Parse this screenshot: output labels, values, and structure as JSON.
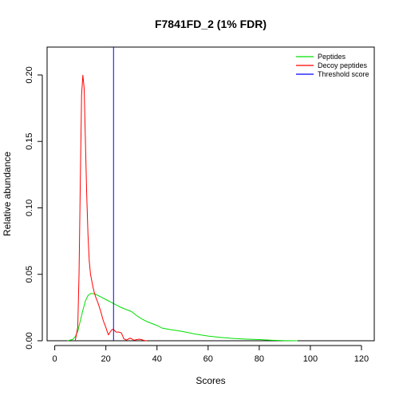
{
  "chart_data": {
    "type": "line",
    "title": "F7841FD_2 (1% FDR)",
    "xlabel": "Scores",
    "ylabel": "Relative abundance",
    "xlim": [
      -3,
      125
    ],
    "ylim": [
      0,
      0.221
    ],
    "x_ticks": [
      0,
      20,
      40,
      60,
      80,
      100,
      120
    ],
    "y_ticks": [
      0.0,
      0.05,
      0.1,
      0.15,
      0.2
    ],
    "x_tick_labels": [
      "0",
      "20",
      "40",
      "60",
      "80",
      "100",
      "120"
    ],
    "y_tick_labels": [
      "0.00",
      "0.05",
      "0.10",
      "0.15",
      "0.20"
    ],
    "grid": false,
    "legend_position": "top-right",
    "series": [
      {
        "name": "Peptides",
        "color": "#00e000",
        "points": [
          [
            5,
            0.0
          ],
          [
            7,
            0.001
          ],
          [
            8,
            0.003
          ],
          [
            9,
            0.007
          ],
          [
            10,
            0.015
          ],
          [
            11,
            0.023
          ],
          [
            12,
            0.03
          ],
          [
            13,
            0.034
          ],
          [
            14,
            0.0355
          ],
          [
            15,
            0.0355
          ],
          [
            16,
            0.035
          ],
          [
            17,
            0.034
          ],
          [
            18,
            0.033
          ],
          [
            20,
            0.031
          ],
          [
            22,
            0.029
          ],
          [
            24,
            0.027
          ],
          [
            26,
            0.025
          ],
          [
            28,
            0.0235
          ],
          [
            30,
            0.022
          ],
          [
            32,
            0.019
          ],
          [
            34,
            0.0165
          ],
          [
            36,
            0.0145
          ],
          [
            38,
            0.013
          ],
          [
            40,
            0.0115
          ],
          [
            42,
            0.0095
          ],
          [
            45,
            0.0085
          ],
          [
            50,
            0.007
          ],
          [
            55,
            0.005
          ],
          [
            60,
            0.0035
          ],
          [
            65,
            0.0025
          ],
          [
            70,
            0.0017
          ],
          [
            75,
            0.0012
          ],
          [
            80,
            0.0009
          ],
          [
            85,
            0.0004
          ],
          [
            90,
            0.0001
          ],
          [
            95,
            0.0
          ]
        ]
      },
      {
        "name": "Decoy peptides",
        "color": "#ff0000",
        "points": [
          [
            8,
            0.0
          ],
          [
            9,
            0.01
          ],
          [
            9.5,
            0.05
          ],
          [
            10,
            0.12
          ],
          [
            10.5,
            0.185
          ],
          [
            11,
            0.2
          ],
          [
            11.5,
            0.19
          ],
          [
            12,
            0.15
          ],
          [
            12.5,
            0.11
          ],
          [
            13,
            0.08
          ],
          [
            13.5,
            0.06
          ],
          [
            14,
            0.05
          ],
          [
            14.5,
            0.045
          ],
          [
            15,
            0.04
          ],
          [
            15.5,
            0.036
          ],
          [
            16,
            0.033
          ],
          [
            17,
            0.028
          ],
          [
            18,
            0.022
          ],
          [
            19,
            0.015
          ],
          [
            20,
            0.01
          ],
          [
            20.5,
            0.007
          ],
          [
            21,
            0.0045
          ],
          [
            21.5,
            0.006
          ],
          [
            22,
            0.0075
          ],
          [
            22.5,
            0.0085
          ],
          [
            23,
            0.0085
          ],
          [
            23.5,
            0.0075
          ],
          [
            24,
            0.0065
          ],
          [
            25,
            0.0065
          ],
          [
            26,
            0.006
          ],
          [
            26.5,
            0.004
          ],
          [
            27,
            0.0015
          ],
          [
            28,
            0.0005
          ],
          [
            29,
            0.0015
          ],
          [
            29.5,
            0.002
          ],
          [
            30,
            0.0015
          ],
          [
            31,
            0.0004
          ],
          [
            32,
            0.0008
          ],
          [
            33,
            0.0012
          ],
          [
            34,
            0.0008
          ],
          [
            35,
            0.0002
          ],
          [
            36,
            0.0
          ]
        ]
      }
    ],
    "threshold": {
      "name": "Threshold score",
      "value": 23,
      "color": "#0000ff"
    },
    "legend": [
      {
        "label": "Peptides",
        "color": "#00e000"
      },
      {
        "label": "Decoy peptides",
        "color": "#ff0000"
      },
      {
        "label": "Threshold score",
        "color": "#0000ff"
      }
    ]
  }
}
